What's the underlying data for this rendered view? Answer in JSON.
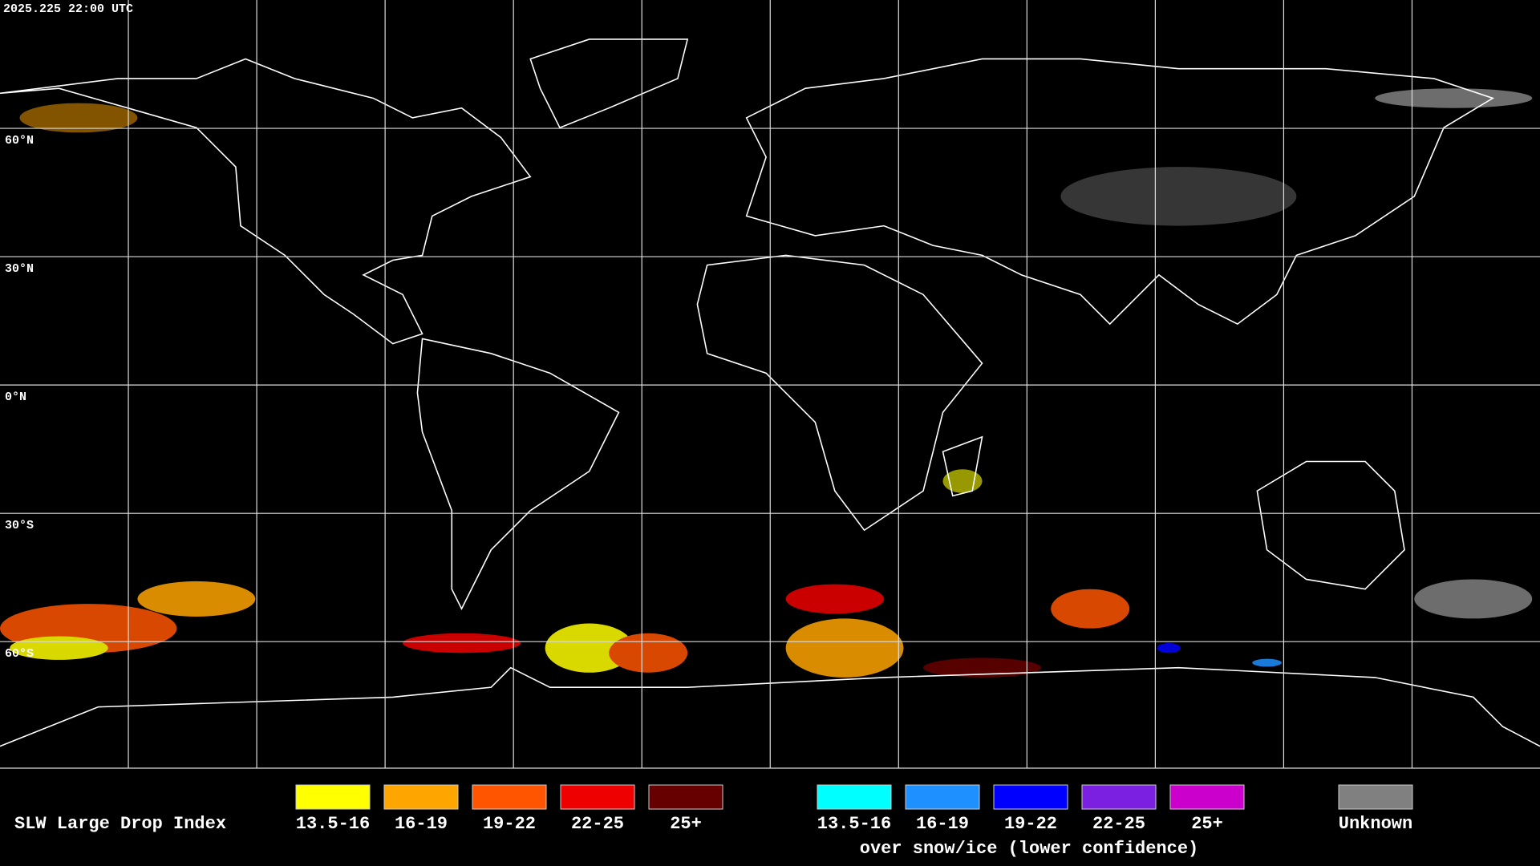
{
  "header": {
    "timestamp": "2025.225 22:00 UTC"
  },
  "grid": {
    "lat_labels": [
      "60°N",
      "30°N",
      "0°N",
      "30°S",
      "60°S"
    ]
  },
  "legend": {
    "title": "SLW Large Drop Index",
    "items": [
      {
        "label": "13.5-16",
        "color": "#ffff00"
      },
      {
        "label": "16-19",
        "color": "#ffa500"
      },
      {
        "label": "19-22",
        "color": "#ff5500"
      },
      {
        "label": "22-25",
        "color": "#ee0000"
      },
      {
        "label": "25+",
        "color": "#660000"
      }
    ],
    "ice_items": [
      {
        "label": "13.5-16",
        "color": "#00ffff"
      },
      {
        "label": "16-19",
        "color": "#1e90ff"
      },
      {
        "label": "19-22",
        "color": "#0000ff"
      },
      {
        "label": "22-25",
        "color": "#7b1fe0"
      },
      {
        "label": "25+",
        "color": "#cc00cc"
      }
    ],
    "ice_note": "over snow/ice (lower confidence)",
    "unknown": {
      "label": "Unknown",
      "color": "#808080"
    }
  }
}
